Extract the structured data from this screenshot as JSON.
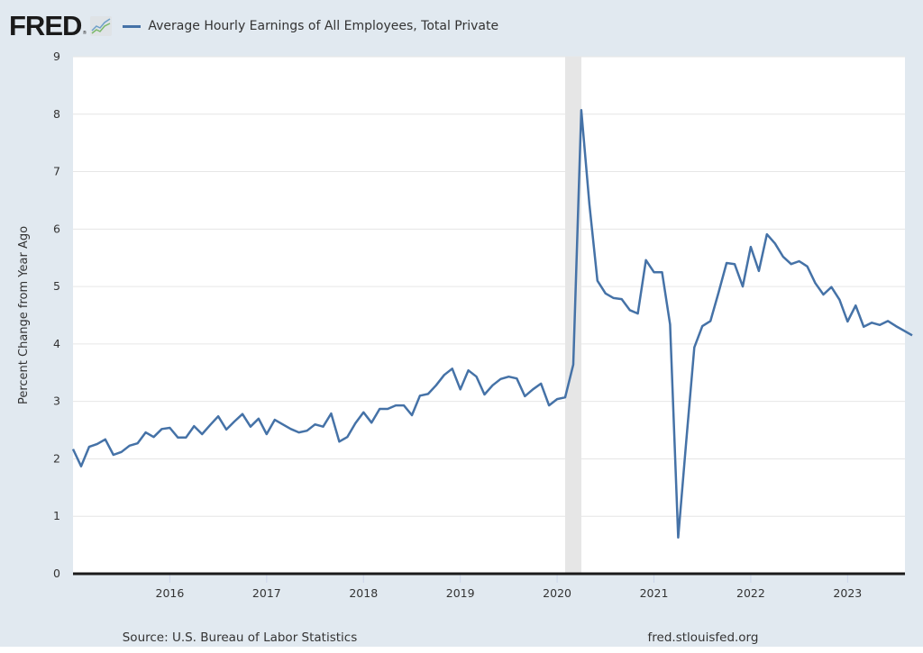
{
  "header": {
    "logo_text": "FRED",
    "logo_mark": "®",
    "logo_icon": "line-chart-icon",
    "legend_label": "Average Hourly Earnings of All Employees, Total Private"
  },
  "footer": {
    "source": "Source: U.S. Bureau of Labor Statistics",
    "site": "fred.stlouisfed.org"
  },
  "colors": {
    "background": "#e1e9f0",
    "plot_background": "#ffffff",
    "series": "#4572a7",
    "recession": "#e6e6e6",
    "grid": "#e6e6e6",
    "zero_line": "#1a1a1a"
  },
  "chart_data": {
    "type": "line",
    "title": "",
    "xlabel": "",
    "ylabel": "Percent Change from Year Ago",
    "ylim": [
      0,
      9
    ],
    "xlim": [
      "2015-01",
      "2023-08"
    ],
    "yticks": [
      0,
      1,
      2,
      3,
      4,
      5,
      6,
      7,
      8,
      9
    ],
    "xticks": [
      "2016",
      "2017",
      "2018",
      "2019",
      "2020",
      "2021",
      "2022",
      "2023"
    ],
    "grid": true,
    "legend": "top-left",
    "recessions": [
      {
        "start": "2020-02",
        "end": "2020-04"
      }
    ],
    "series": [
      {
        "name": "Average Hourly Earnings of All Employees, Total Private",
        "start": "2015-01",
        "frequency": "monthly",
        "values": [
          2.17,
          1.87,
          2.21,
          2.26,
          2.34,
          2.07,
          2.12,
          2.23,
          2.27,
          2.46,
          2.38,
          2.52,
          2.54,
          2.37,
          2.37,
          2.57,
          2.43,
          2.59,
          2.74,
          2.51,
          2.65,
          2.78,
          2.56,
          2.7,
          2.43,
          2.68,
          2.6,
          2.52,
          2.46,
          2.49,
          2.6,
          2.56,
          2.79,
          2.3,
          2.38,
          2.62,
          2.81,
          2.63,
          2.87,
          2.87,
          2.93,
          2.93,
          2.76,
          3.1,
          3.13,
          3.28,
          3.46,
          3.57,
          3.21,
          3.54,
          3.43,
          3.12,
          3.28,
          3.39,
          3.43,
          3.4,
          3.09,
          3.21,
          3.31,
          2.93,
          3.04,
          3.07,
          3.64,
          8.07,
          6.43,
          5.1,
          4.88,
          4.8,
          4.78,
          4.59,
          4.53,
          5.46,
          5.25,
          5.25,
          4.34,
          0.63,
          2.3,
          3.94,
          4.31,
          4.4,
          4.89,
          5.41,
          5.39,
          5.0,
          5.69,
          5.27,
          5.91,
          5.75,
          5.52,
          5.39,
          5.44,
          5.35,
          5.06,
          4.86,
          4.99,
          4.77,
          4.39,
          4.67,
          4.3,
          4.37,
          4.33,
          4.4,
          4.31,
          4.23,
          4.15
        ]
      }
    ]
  }
}
